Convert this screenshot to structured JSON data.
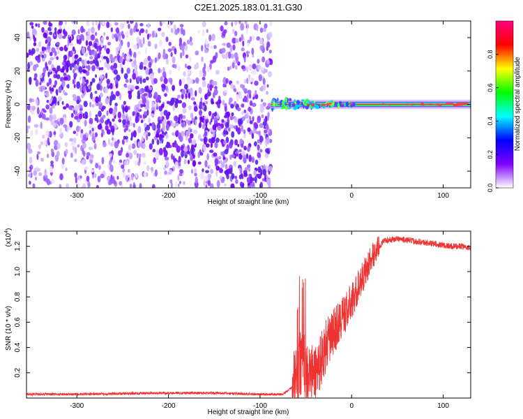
{
  "title": "C2E1.2025.183.01.31.G30",
  "chart_data": [
    {
      "type": "heatmap",
      "xlabel": "Height of straight line (km)",
      "ylabel": "Frequency (Hz)",
      "xlim": [
        -355,
        130
      ],
      "ylim": [
        -50,
        50
      ],
      "xticks": [
        -300,
        -200,
        -100,
        0,
        100
      ],
      "yticks": [
        -40,
        -20,
        0,
        20,
        40
      ],
      "colorbar": {
        "label": "Normalized spectral amplitude",
        "range": [
          0,
          1
        ],
        "ticks": [
          0.0,
          0.2,
          0.4,
          0.6,
          0.8
        ],
        "colors": [
          "#ffffff",
          "#8000ff",
          "#0000ff",
          "#00ffff",
          "#00ff00",
          "#ffff00",
          "#ff0000",
          "#ff0080"
        ]
      },
      "features": {
        "scatter_region_x": [
          -355,
          -88
        ],
        "scatter_amplitude": [
          0.0,
          0.15
        ],
        "carrier_start_x": -88,
        "carrier_frequency": 0,
        "carrier_amplitude": 0.9
      }
    },
    {
      "type": "line",
      "xlabel": "Height of straight line (km)",
      "ylabel": "SNR (10 * v/v)",
      "multiplier": "(x10",
      "multiplier_exp": "4",
      "multiplier_close": ")",
      "xlim": [
        -355,
        130
      ],
      "ylim": [
        0,
        1.32
      ],
      "xticks": [
        -300,
        -200,
        -100,
        0,
        100
      ],
      "yticks": [
        0.2,
        0.4,
        0.6,
        0.8,
        1.0,
        1.2
      ],
      "ytick_labels": [
        "0.2",
        "0.4",
        "0.6",
        "0.8",
        "1.0",
        "1.2"
      ],
      "color": "#ee3333",
      "series": [
        {
          "x": [
            -355,
            -300,
            -250,
            -200,
            -150,
            -100,
            -75,
            -62,
            -55,
            -50,
            -45,
            -40,
            -35,
            -30,
            -25,
            -20,
            -15,
            -10,
            -5,
            0,
            5,
            10,
            15,
            20,
            25,
            30,
            35,
            40,
            50,
            60,
            70,
            80,
            90,
            100,
            110,
            120,
            130
          ],
          "y": [
            0.03,
            0.03,
            0.035,
            0.04,
            0.04,
            0.03,
            0.03,
            0.1,
            0.3,
            0.22,
            0.18,
            0.2,
            0.28,
            0.38,
            0.45,
            0.52,
            0.58,
            0.64,
            0.7,
            0.76,
            0.84,
            0.93,
            1.0,
            1.08,
            1.15,
            1.2,
            1.24,
            1.25,
            1.26,
            1.25,
            1.24,
            1.23,
            1.22,
            1.21,
            1.2,
            1.2,
            1.19
          ]
        }
      ]
    }
  ]
}
